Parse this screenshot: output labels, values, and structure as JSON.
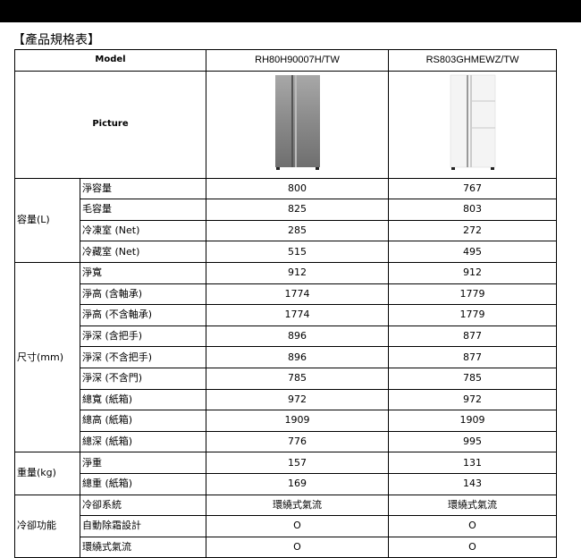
{
  "title": "【產品規格表】",
  "header": {
    "model_label": "Model",
    "picture_label": "Picture",
    "models": [
      "RH80H90007H/TW",
      "RS803GHMEWZ/TW"
    ]
  },
  "products": [
    {
      "image": "stainless-side-by-side-fridge",
      "color": "#8a8a8a"
    },
    {
      "image": "white-side-by-side-fridge",
      "color": "#f4f4f4"
    }
  ],
  "groups": [
    {
      "label": "容量(L)",
      "rows": [
        {
          "label": "淨容量",
          "values": [
            "800",
            "767"
          ]
        },
        {
          "label": "毛容量",
          "values": [
            "825",
            "803"
          ]
        },
        {
          "label": "冷凍室 (Net)",
          "values": [
            "285",
            "272"
          ]
        },
        {
          "label": "冷藏室 (Net)",
          "values": [
            "515",
            "495"
          ]
        }
      ]
    },
    {
      "label": "尺寸(mm)",
      "rows": [
        {
          "label": "淨寬",
          "values": [
            "912",
            "912"
          ]
        },
        {
          "label": "淨高 (含軸承)",
          "values": [
            "1774",
            "1779"
          ]
        },
        {
          "label": "淨高 (不含軸承)",
          "values": [
            "1774",
            "1779"
          ]
        },
        {
          "label": "淨深 (含把手)",
          "values": [
            "896",
            "877"
          ]
        },
        {
          "label": "淨深 (不含把手)",
          "values": [
            "896",
            "877"
          ]
        },
        {
          "label": "淨深 (不含門)",
          "values": [
            "785",
            "785"
          ]
        },
        {
          "label": "總寬 (紙箱)",
          "values": [
            "972",
            "972"
          ]
        },
        {
          "label": "總高 (紙箱)",
          "values": [
            "1909",
            "1909"
          ]
        },
        {
          "label": "總深 (紙箱)",
          "values": [
            "776",
            "995"
          ]
        }
      ]
    },
    {
      "label": "重量(kg)",
      "rows": [
        {
          "label": "淨重",
          "values": [
            "157",
            "131"
          ]
        },
        {
          "label": "總重 (紙箱)",
          "values": [
            "169",
            "143"
          ]
        }
      ]
    },
    {
      "label": "冷卻功能",
      "rows": [
        {
          "label": "冷卻系統",
          "values": [
            "環繞式氣流",
            "環繞式氣流"
          ]
        },
        {
          "label": "自動除霜設計",
          "values": [
            "O",
            "O"
          ]
        },
        {
          "label": "環繞式氣流",
          "values": [
            "O",
            "O"
          ]
        }
      ]
    }
  ]
}
